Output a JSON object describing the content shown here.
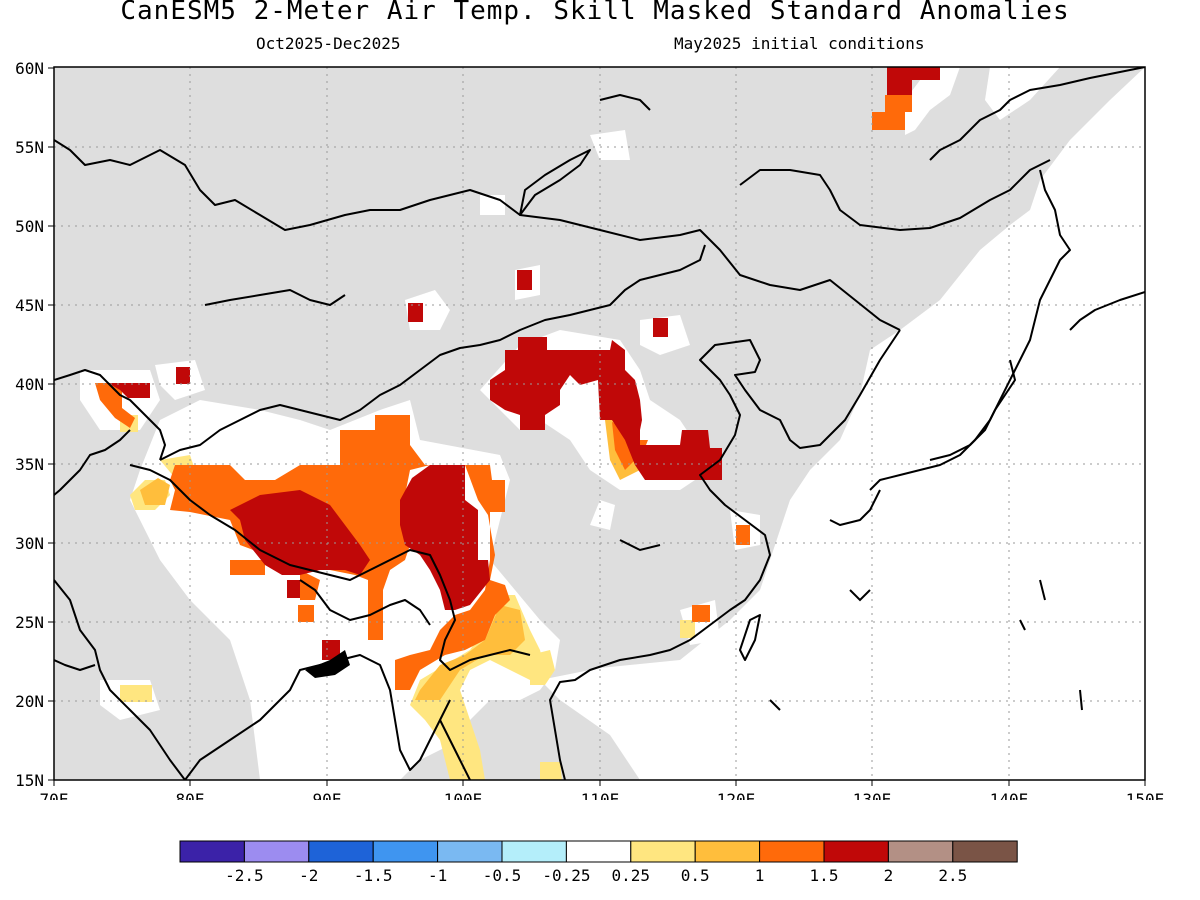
{
  "title": "CanESM5 2-Meter Air Temp. Skill Masked Standard Anomalies",
  "subtitle_left": "Oct2025-Dec2025",
  "subtitle_right": "May2025 initial conditions",
  "map": {
    "lon_ticks": [
      "70E",
      "80E",
      "90E",
      "100E",
      "110E",
      "120E",
      "130E",
      "140E",
      "150E"
    ],
    "lat_ticks": [
      "15N",
      "20N",
      "25N",
      "30N",
      "35N",
      "40N",
      "45N",
      "50N",
      "55N",
      "60N"
    ],
    "lon_range": [
      70,
      150
    ],
    "lat_range": [
      15,
      60
    ],
    "gridlines": "dotted",
    "masked_color": "#dedede",
    "background_color": "#ffffff"
  },
  "colorbar": {
    "colors": [
      "#3b22a8",
      "#9c8cf0",
      "#1e63d8",
      "#3f95f0",
      "#7ab9f2",
      "#b4eefa",
      "#ffffff",
      "#ffe680",
      "#ffbe3c",
      "#ff6a0a",
      "#c00808",
      "#b39085",
      "#7a5446"
    ],
    "labels": [
      "-2.5",
      "-2",
      "-1.5",
      "-1",
      "-0.5",
      "-0.25",
      "0.25",
      "0.5",
      "1",
      "1.5",
      "2",
      "2.5"
    ]
  }
}
